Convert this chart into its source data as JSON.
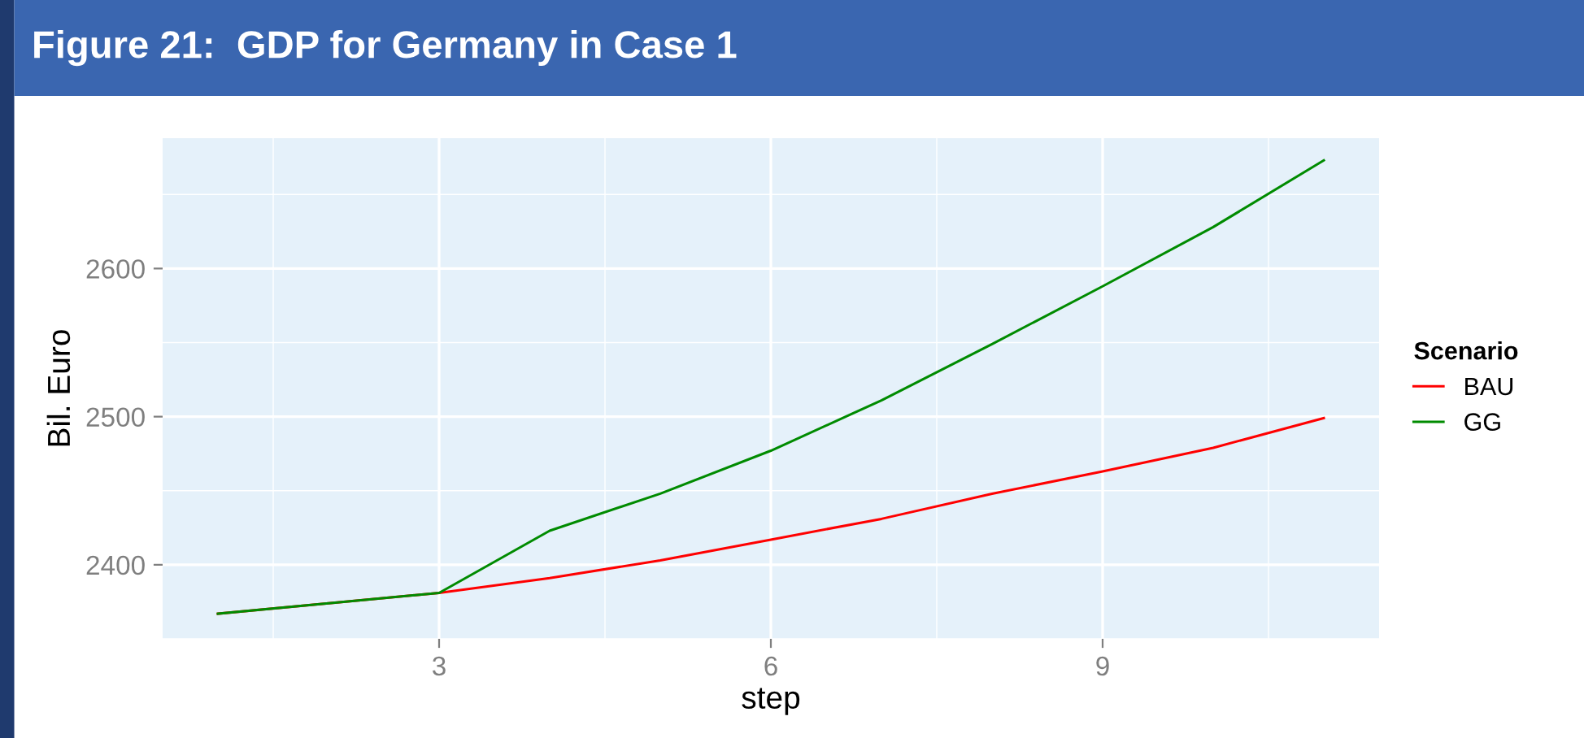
{
  "chart_data": {
    "type": "line",
    "title": "Figure 21:  GDP for Germany in Case 1",
    "xlabel": "step",
    "ylabel": "Bil. Euro",
    "legend_title": "Scenario",
    "x": [
      1,
      2,
      3,
      4,
      5,
      6,
      7,
      8,
      9,
      10,
      11
    ],
    "series": [
      {
        "name": "BAU",
        "color": "#ff0000",
        "values": [
          2367,
          2374,
          2381,
          2391,
          2403,
          2417,
          2431,
          2448,
          2463,
          2479,
          2499
        ]
      },
      {
        "name": "GG",
        "color": "#008b00",
        "values": [
          2367,
          2374,
          2381,
          2423,
          2448,
          2477,
          2511,
          2549,
          2588,
          2628,
          2673
        ]
      }
    ],
    "xlim": [
      0.5,
      11.5
    ],
    "ylim": [
      2350,
      2688
    ],
    "xticks": [
      {
        "value": 1.5,
        "label": null
      },
      3,
      {
        "value": 4.5,
        "label": null
      },
      6,
      {
        "value": 7.5,
        "label": null
      },
      9,
      {
        "value": 10.5,
        "label": null
      }
    ],
    "yticks": [
      {
        "value": 2350,
        "label": null
      },
      2400,
      {
        "value": 2450,
        "label": null
      },
      2500,
      {
        "value": 2550,
        "label": null
      },
      2600,
      {
        "value": 2650,
        "label": null
      }
    ],
    "grid": true,
    "legend": "right",
    "marker": "none",
    "line_style": "solid"
  }
}
